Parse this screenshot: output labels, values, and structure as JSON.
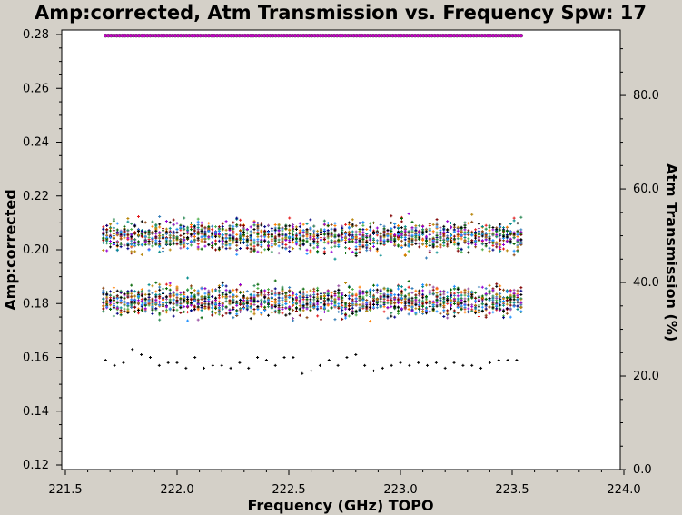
{
  "chart_data": {
    "type": "scatter",
    "title": "Amp:corrected, Atm Transmission vs. Frequency Spw: 17",
    "xlabel": "Frequency (GHz) TOPO",
    "ylabel": "Amp:corrected",
    "y2label": "Atm Transmission (%)",
    "xlim": [
      221.5,
      224.0
    ],
    "ylim": [
      0.12,
      0.28
    ],
    "y2lim": [
      0.0,
      94.0
    ],
    "x_ticks": [
      "221.5",
      "222.0",
      "222.5",
      "223.0",
      "223.5",
      "224.0"
    ],
    "y_ticks": [
      "0.12",
      "0.14",
      "0.16",
      "0.18",
      "0.20",
      "0.22",
      "0.24",
      "0.26",
      "0.28"
    ],
    "y2_ticks": [
      "0.0",
      "20.0",
      "40.0",
      "60.0",
      "80.0"
    ],
    "grid": false,
    "series_colors": [
      "#e41a1c",
      "#377eb8",
      "#4daf4a",
      "#984ea3",
      "#ff7f00",
      "#008b8b",
      "#000080",
      "#8b4513",
      "#2e8b57",
      "#800000",
      "#b8860b",
      "#9400d3",
      "#006400",
      "#1e90ff",
      "#000000"
    ],
    "series": [
      {
        "kind": "amplitude-band-upper",
        "x_range": [
          221.67,
          223.54
        ],
        "y_center": 0.205,
        "y_spread": 0.0045,
        "colors": "series_colors"
      },
      {
        "kind": "amplitude-band-lower",
        "x_range": [
          221.67,
          223.54
        ],
        "y_center": 0.181,
        "y_spread": 0.0045,
        "colors": "series_colors"
      },
      {
        "kind": "amplitude-sparse",
        "color": "#000000",
        "x": [
          221.68,
          221.72,
          221.76,
          221.8,
          221.84,
          221.88,
          221.92,
          221.96,
          222.0,
          222.04,
          222.08,
          222.12,
          222.16,
          222.2,
          222.24,
          222.28,
          222.32,
          222.36,
          222.4,
          222.44,
          222.48,
          222.52,
          222.56,
          222.6,
          222.64,
          222.68,
          222.72,
          222.76,
          222.8,
          222.84,
          222.88,
          222.92,
          222.96,
          223.0,
          223.04,
          223.08,
          223.12,
          223.16,
          223.2,
          223.24,
          223.28,
          223.32,
          223.36,
          223.4,
          223.44,
          223.48,
          223.52
        ],
        "y": [
          0.159,
          0.157,
          0.158,
          0.163,
          0.161,
          0.16,
          0.157,
          0.158,
          0.158,
          0.156,
          0.16,
          0.156,
          0.157,
          0.157,
          0.156,
          0.158,
          0.156,
          0.16,
          0.159,
          0.157,
          0.16,
          0.16,
          0.154,
          0.155,
          0.157,
          0.159,
          0.157,
          0.16,
          0.161,
          0.157,
          0.155,
          0.156,
          0.157,
          0.158,
          0.157,
          0.158,
          0.157,
          0.158,
          0.156,
          0.158,
          0.157,
          0.157,
          0.156,
          0.158,
          0.159,
          0.159,
          0.159
        ]
      },
      {
        "kind": "atm-transmission",
        "color": "#cc00cc",
        "axis": "right",
        "x_range": [
          221.68,
          223.54
        ],
        "value": 92.8
      }
    ]
  }
}
